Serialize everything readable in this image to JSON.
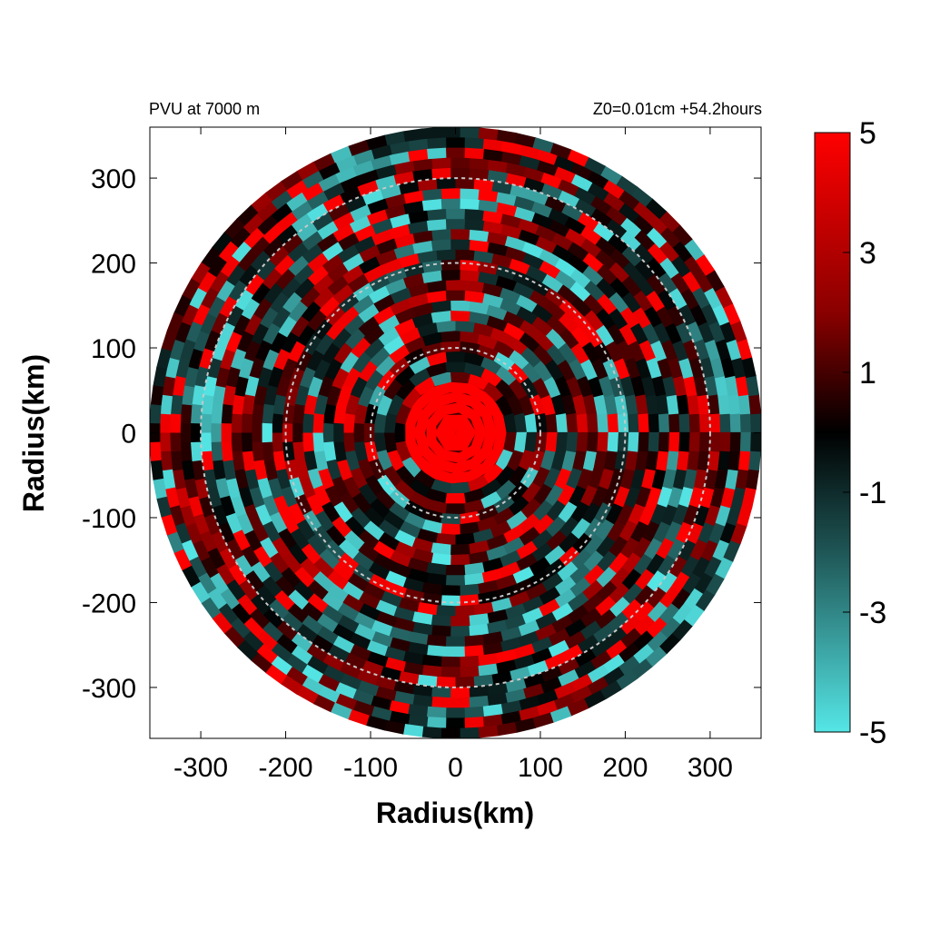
{
  "header": {
    "left_title": "PVU at  7000 m",
    "right_title": "Z0=0.01cm  +54.2hours"
  },
  "chart_data": {
    "type": "heatmap",
    "title": "PVU at  7000 m",
    "subtitle": "Z0=0.01cm  +54.2hours",
    "xlabel": "Radius(km)",
    "ylabel": "Radius(km)",
    "xlim": [
      -360,
      360
    ],
    "ylim": [
      -360,
      360
    ],
    "x_ticks": [
      -300,
      -200,
      -100,
      0,
      100,
      200,
      300
    ],
    "y_ticks": [
      300,
      200,
      100,
      0,
      -100,
      -200,
      -300
    ],
    "x_tick_labels": [
      "-300",
      "-200",
      "-100",
      "0",
      "100",
      "200",
      "300"
    ],
    "y_tick_labels": [
      "300",
      "200",
      "100",
      "0",
      "-100",
      "-200",
      "-300"
    ],
    "domain_radius": 360,
    "range_rings": [
      100,
      200,
      300
    ],
    "ring_color": "#c8c8c8",
    "core_value_max_radius": 60,
    "colorbar": {
      "min": -5,
      "max": 5,
      "ticks": [
        5,
        3,
        1,
        -1,
        -3,
        -5
      ],
      "tick_labels": [
        "5",
        "3",
        "1",
        "-1",
        "-3",
        "-5"
      ],
      "colors": [
        {
          "value": 5,
          "color": "#ff0000"
        },
        {
          "value": 2,
          "color": "#8a0000"
        },
        {
          "value": 0,
          "color": "#000000"
        },
        {
          "value": -2,
          "color": "#1f5656"
        },
        {
          "value": -5,
          "color": "#55e6e6"
        }
      ]
    },
    "grid": false
  }
}
